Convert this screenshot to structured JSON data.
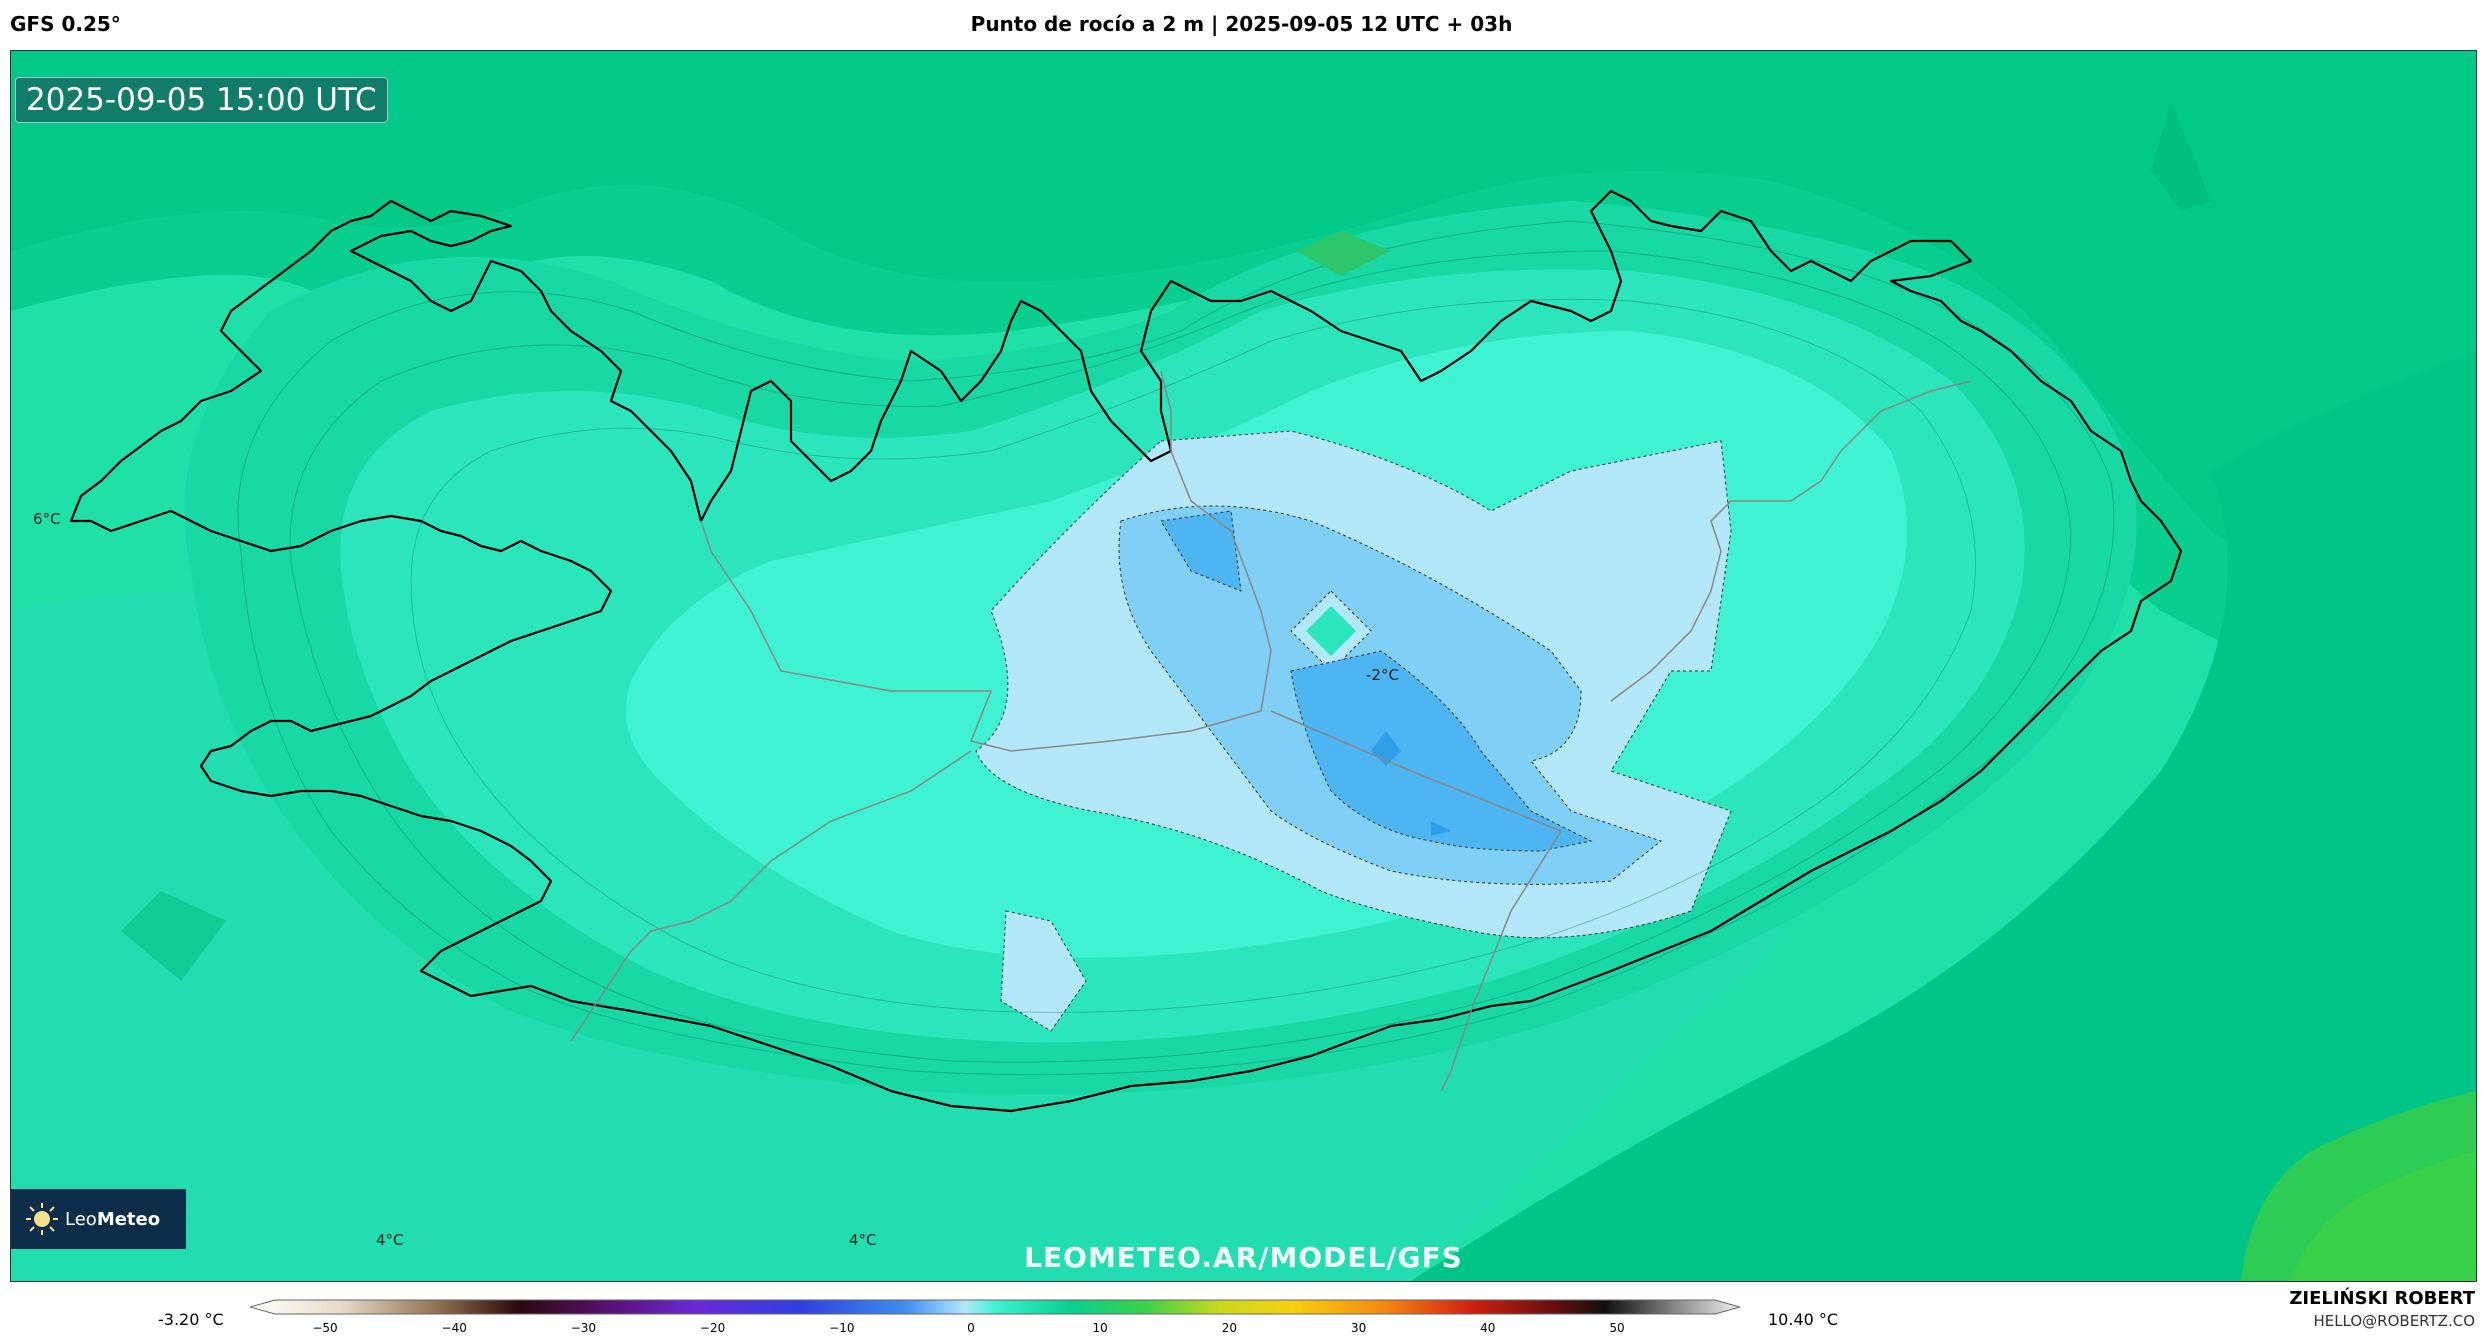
{
  "header": {
    "model": "GFS 0.25°",
    "title": "Punto de rocío a 2 m | 2025-09-05 12 UTC + 03h"
  },
  "map": {
    "valid_time": "2025-09-05 15:00 UTC",
    "logo_text_light": "Leo",
    "logo_text_bold": "Meteo",
    "watermark": "LEOMETEO.AR/MODEL/GFS",
    "contour_labels": [
      "6°C",
      "-2°C",
      "4°C",
      "4°C"
    ]
  },
  "colorbar": {
    "min_label": "-3.20 °C",
    "max_label": "10.40 °C",
    "ticks": [
      "−50",
      "−40",
      "−30",
      "−20",
      "−10",
      "0",
      "10",
      "20",
      "30",
      "40",
      "50"
    ]
  },
  "credits": {
    "author": "ZIELIŃSKI ROBERT",
    "email": "HELLO@ROBERTZ.CO"
  },
  "colors": {
    "sea_outer": "#00c98a",
    "land_warm": "#1fd9a0",
    "interior": "#3ff2d2",
    "pale": "#b3e8fb",
    "cold": "#7fcff6",
    "coldest": "#4db5f2",
    "green_corner": "#2dcc55"
  }
}
